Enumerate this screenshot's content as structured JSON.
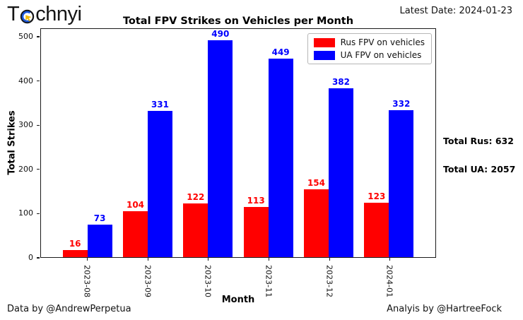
{
  "brand": {
    "name_start": "T",
    "name_end": "chnyi"
  },
  "header": {
    "latest_date": "Latest Date: 2024-01-23"
  },
  "chart_data": {
    "type": "bar",
    "title": "Total FPV Strikes on Vehicles per Month",
    "xlabel": "Month",
    "ylabel": "Total Strikes",
    "categories": [
      "2023-08",
      "2023-09",
      "2023-10",
      "2023-11",
      "2023-12",
      "2024-01"
    ],
    "series": [
      {
        "name": "Rus FPV on vehicles",
        "color": "#ff0000",
        "values": [
          16,
          104,
          122,
          113,
          154,
          123
        ]
      },
      {
        "name": "UA FPV on vehicles",
        "color": "#0000ff",
        "values": [
          73,
          331,
          490,
          449,
          382,
          332
        ]
      }
    ],
    "ylim": [
      0,
      520
    ],
    "yticks": [
      0,
      100,
      200,
      300,
      400,
      500
    ],
    "grid": false,
    "legend_position": "upper right",
    "bar_value_labels": true
  },
  "annotations": {
    "total_rus": "Total Rus: 632",
    "total_ua": "Total UA: 2057"
  },
  "footer": {
    "left": "Data by @AndrewPerpetua",
    "right": "Analyis by @HartreeFock"
  }
}
